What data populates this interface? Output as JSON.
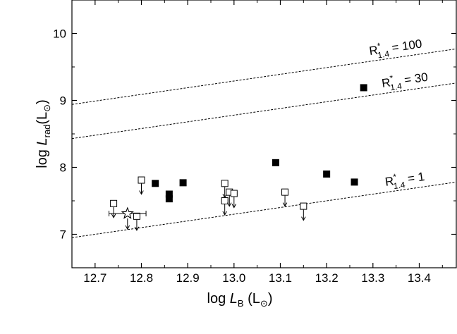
{
  "chart_data": {
    "type": "scatter",
    "xlabel": {
      "prefix": "log ",
      "var": "L",
      "sub": "B",
      "unit": " (L",
      "sun": "⊙",
      "close": ")"
    },
    "ylabel": {
      "prefix": "log ",
      "var": "L",
      "sub": "rad",
      "unit": "(L",
      "sun": "⊙",
      "close": ")"
    },
    "xlim": [
      12.65,
      13.48
    ],
    "ylim": [
      6.5,
      10.5
    ],
    "xticks": [
      "12.7",
      "12.8",
      "12.9",
      "13.0",
      "13.1",
      "13.2",
      "13.3",
      "13.4"
    ],
    "yticks": [
      "7",
      "8",
      "9",
      "10"
    ],
    "grid": false,
    "detections": [
      {
        "x": 12.83,
        "y": 7.76
      },
      {
        "x": 12.86,
        "y": 7.6
      },
      {
        "x": 12.86,
        "y": 7.53
      },
      {
        "x": 12.89,
        "y": 7.77
      },
      {
        "x": 13.09,
        "y": 8.07
      },
      {
        "x": 13.2,
        "y": 7.9
      },
      {
        "x": 13.26,
        "y": 7.78
      },
      {
        "x": 13.28,
        "y": 9.19
      }
    ],
    "upper_limits": [
      {
        "x": 12.74,
        "y": 7.46
      },
      {
        "x": 12.79,
        "y": 7.27
      },
      {
        "x": 12.8,
        "y": 7.81
      },
      {
        "x": 12.98,
        "y": 7.76
      },
      {
        "x": 12.98,
        "y": 7.5
      },
      {
        "x": 12.99,
        "y": 7.63
      },
      {
        "x": 13.0,
        "y": 7.61
      },
      {
        "x": 13.11,
        "y": 7.63
      },
      {
        "x": 13.15,
        "y": 7.42
      }
    ],
    "special_point": {
      "x": 12.77,
      "y": 7.31,
      "xerr": 0.04,
      "marker": "star",
      "upper_limit": true
    },
    "reference_lines": [
      {
        "label_main": "R",
        "label_sup": "*",
        "label_sub": "1.4",
        "label_value": " = 100",
        "slope": 1.0,
        "intercept": -3.71
      },
      {
        "label_main": "R",
        "label_sup": "*",
        "label_sub": "1.4",
        "label_value": " = 30",
        "slope": 1.0,
        "intercept": -4.22
      },
      {
        "label_main": "R",
        "label_sup": "*",
        "label_sub": "1.4",
        "label_value": " = 1",
        "slope": 1.0,
        "intercept": -5.7
      }
    ]
  }
}
